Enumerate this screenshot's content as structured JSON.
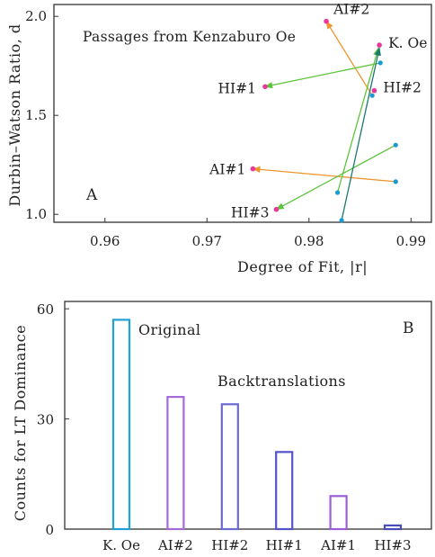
{
  "chart_data": [
    {
      "type": "scatter",
      "panel_label": "A",
      "title": "Passages from Kenzaburo Oe",
      "xlabel": "Degree of Fit, |r|",
      "ylabel": "Durbin–Watson Ratio, d",
      "xlim": [
        0.955,
        0.992
      ],
      "ylim": [
        0.96,
        2.06
      ],
      "xticks": [
        "0.96",
        "0.97",
        "0.98",
        "0.99"
      ],
      "xtick_values": [
        0.96,
        0.97,
        0.98,
        0.99
      ],
      "yticks": [
        "1.0",
        "1.5",
        "2.0"
      ],
      "ytick_values": [
        1.0,
        1.5,
        2.0
      ],
      "points": [
        {
          "label": "K. Oe",
          "x": 0.9869,
          "y": 1.855,
          "color": "#e8389a"
        },
        {
          "label": "AI#2",
          "x": 0.9817,
          "y": 1.975,
          "color": "#e8389a"
        },
        {
          "label": "HI#2",
          "x": 0.9864,
          "y": 1.625,
          "color": "#e8389a"
        },
        {
          "label": "HI#1",
          "x": 0.9757,
          "y": 1.645,
          "color": "#e8389a"
        },
        {
          "label": "AI#1",
          "x": 0.9745,
          "y": 1.23,
          "color": "#e8389a"
        },
        {
          "label": "HI#3",
          "x": 0.9768,
          "y": 1.025,
          "color": "#e8389a"
        }
      ],
      "backtranslation_sources": [
        {
          "x": 0.9862,
          "y": 1.6,
          "color": "#1a9bd0"
        },
        {
          "x": 0.987,
          "y": 1.765,
          "color": "#1a9bd0"
        },
        {
          "x": 0.9885,
          "y": 1.165,
          "color": "#1a9bd0"
        },
        {
          "x": 0.9885,
          "y": 1.35,
          "color": "#1a9bd0"
        },
        {
          "x": 0.9828,
          "y": 1.11,
          "color": "#1a9bd0"
        },
        {
          "x": 0.9832,
          "y": 0.97,
          "color": "#1a9bd0"
        }
      ],
      "arrows": [
        {
          "from": [
            0.9862,
            1.6
          ],
          "to": [
            0.9817,
            1.975
          ],
          "color": "#f0952e"
        },
        {
          "from": [
            0.9885,
            1.165
          ],
          "to": [
            0.9745,
            1.23
          ],
          "color": "#f0952e"
        },
        {
          "from": [
            0.987,
            1.765
          ],
          "to": [
            0.9757,
            1.645
          ],
          "color": "#5cc43a"
        },
        {
          "from": [
            0.9885,
            1.35
          ],
          "to": [
            0.9768,
            1.025
          ],
          "color": "#5cc43a"
        },
        {
          "from": [
            0.9828,
            1.11
          ],
          "to": [
            0.9868,
            1.84
          ],
          "color": "#5cc43a"
        },
        {
          "from": [
            0.9832,
            0.97
          ],
          "to": [
            0.9869,
            1.84
          ],
          "color": "#1b7a70"
        }
      ]
    },
    {
      "type": "bar",
      "panel_label": "B",
      "ylabel": "Counts for LT Dominance",
      "ylim": [
        0,
        62
      ],
      "yticks": [
        "0",
        "30",
        "60"
      ],
      "ytick_values": [
        0,
        30,
        60
      ],
      "categories": [
        "K. Oe",
        "AI#2",
        "HI#2",
        "HI#1",
        "AI#1",
        "HI#3"
      ],
      "values": [
        57,
        36,
        34,
        21,
        9,
        1
      ],
      "colors": [
        "#1ea0d8",
        "#a46bd8",
        "#6a6ad0",
        "#5454c8",
        "#9b5fd8",
        "#4a4ab8"
      ],
      "annotations": [
        "Original",
        "Backtranslations"
      ]
    }
  ]
}
